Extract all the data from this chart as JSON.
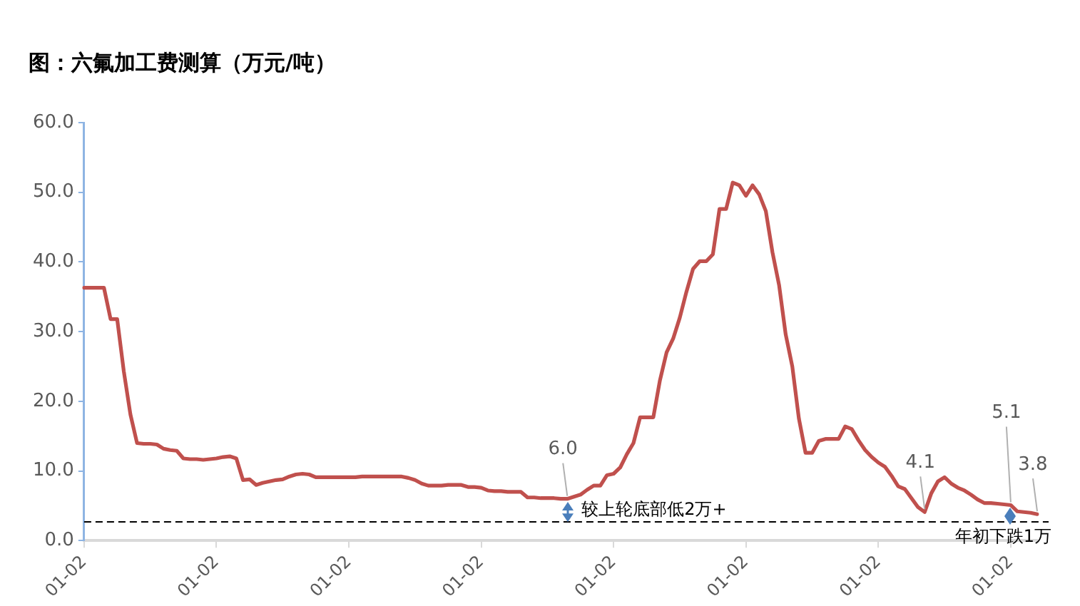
{
  "chart_data": {
    "type": "line",
    "title": "图：六氟加工费测算（万元/吨）",
    "categories": [
      "01-02",
      null,
      null,
      null,
      null,
      null,
      null,
      null,
      null,
      null,
      null,
      null,
      null,
      null,
      null,
      null,
      null,
      null,
      null,
      null,
      "01-02",
      null,
      null,
      null,
      null,
      null,
      null,
      null,
      null,
      null,
      null,
      null,
      null,
      null,
      null,
      null,
      null,
      null,
      null,
      null,
      "01-02",
      null,
      null,
      null,
      null,
      null,
      null,
      null,
      null,
      null,
      null,
      null,
      null,
      null,
      null,
      null,
      null,
      null,
      null,
      null,
      "01-02",
      null,
      null,
      null,
      null,
      null,
      null,
      null,
      null,
      null,
      null,
      null,
      null,
      null,
      null,
      null,
      null,
      null,
      null,
      null,
      "01-02",
      null,
      null,
      null,
      null,
      null,
      null,
      null,
      null,
      null,
      null,
      null,
      null,
      null,
      null,
      null,
      null,
      null,
      null,
      null,
      "01-02",
      null,
      null,
      null,
      null,
      null,
      null,
      null,
      null,
      null,
      null,
      null,
      null,
      null,
      null,
      null,
      null,
      null,
      null,
      null,
      "01-02",
      null,
      null,
      null,
      null,
      null,
      null,
      null,
      null,
      null,
      null,
      null,
      null,
      null,
      null,
      null,
      null,
      null,
      null,
      null,
      "01-02",
      null,
      null,
      null,
      null
    ],
    "series": [
      {
        "color": "#c0504d",
        "values": [
          36.3,
          36.3,
          36.3,
          36.3,
          31.8,
          31.8,
          24.3,
          18.1,
          14.0,
          13.9,
          13.9,
          13.8,
          13.2,
          13.0,
          12.9,
          11.8,
          11.7,
          11.7,
          11.6,
          11.7,
          11.8,
          12.0,
          12.1,
          11.8,
          8.7,
          8.8,
          8.0,
          8.3,
          8.5,
          8.7,
          8.8,
          9.2,
          9.5,
          9.6,
          9.5,
          9.1,
          9.1,
          9.1,
          9.1,
          9.1,
          9.1,
          9.1,
          9.2,
          9.2,
          9.2,
          9.2,
          9.2,
          9.2,
          9.2,
          9.0,
          8.7,
          8.2,
          7.9,
          7.9,
          7.9,
          8.0,
          8.0,
          8.0,
          7.7,
          7.7,
          7.6,
          7.2,
          7.1,
          7.1,
          7.0,
          7.0,
          7.0,
          6.2,
          6.2,
          6.1,
          6.1,
          6.1,
          6.0,
          6.0,
          6.3,
          6.6,
          7.3,
          7.9,
          7.9,
          9.4,
          9.6,
          10.5,
          12.4,
          14.0,
          17.7,
          17.7,
          17.7,
          23.0,
          27.0,
          29.0,
          32.0,
          35.7,
          39.0,
          40.1,
          40.1,
          41.1,
          47.6,
          47.6,
          51.4,
          51.0,
          49.5,
          51.0,
          49.7,
          47.3,
          41.4,
          36.7,
          29.6,
          25.0,
          17.5,
          12.6,
          12.6,
          14.3,
          14.6,
          14.6,
          14.6,
          16.4,
          16.0,
          14.4,
          13.0,
          12.0,
          11.2,
          10.6,
          9.3,
          7.8,
          7.4,
          6.1,
          4.8,
          4.1,
          6.8,
          8.5,
          9.1,
          8.2,
          7.6,
          7.2,
          6.6,
          5.9,
          5.4,
          5.4,
          5.3,
          5.2,
          5.1,
          4.2,
          4.1,
          4.0,
          3.8
        ],
        "value_labels": [
          null,
          null,
          null,
          null,
          null,
          null,
          null,
          null,
          null,
          null,
          null,
          null,
          null,
          null,
          null,
          null,
          null,
          null,
          null,
          null,
          null,
          null,
          null,
          null,
          null,
          null,
          null,
          null,
          null,
          null,
          null,
          null,
          null,
          null,
          null,
          null,
          null,
          null,
          null,
          null,
          null,
          null,
          null,
          null,
          null,
          null,
          null,
          null,
          null,
          null,
          null,
          null,
          null,
          null,
          null,
          null,
          null,
          null,
          null,
          null,
          null,
          null,
          null,
          null,
          null,
          null,
          null,
          null,
          null,
          null,
          null,
          null,
          null,
          "6.0",
          null,
          null,
          null,
          null,
          null,
          null,
          null,
          null,
          null,
          null,
          null,
          null,
          null,
          null,
          null,
          null,
          null,
          null,
          null,
          null,
          null,
          null,
          null,
          null,
          null,
          null,
          null,
          null,
          null,
          null,
          null,
          null,
          null,
          null,
          null,
          null,
          null,
          null,
          null,
          null,
          null,
          null,
          null,
          null,
          null,
          null,
          null,
          null,
          null,
          null,
          null,
          null,
          null,
          "4.1",
          null,
          null,
          null,
          null,
          null,
          null,
          null,
          null,
          null,
          null,
          null,
          null,
          "5.1",
          null,
          null,
          null,
          "3.8"
        ]
      }
    ],
    "ylim": [
      0,
      60
    ],
    "yticks": [
      {
        "value": 0,
        "label": "0.0"
      },
      {
        "value": 10,
        "label": "10.0"
      },
      {
        "value": 20,
        "label": "20.0"
      },
      {
        "value": 30,
        "label": "30.0"
      },
      {
        "value": 40,
        "label": "40.0"
      },
      {
        "value": 50,
        "label": "50.0"
      },
      {
        "value": 60,
        "label": "60.0"
      }
    ],
    "ref_lines": [
      {
        "axis": "y",
        "value": 2.7,
        "color": "#000000",
        "line_style": "dashed"
      }
    ],
    "annotations": [
      {
        "text": "较上轮底部低2万+",
        "y": 2.7
      },
      {
        "text": "年初下跌1万",
        "y": 2.7
      }
    ],
    "grid": false,
    "legend": false,
    "marker": "none",
    "line_style": "solid"
  }
}
